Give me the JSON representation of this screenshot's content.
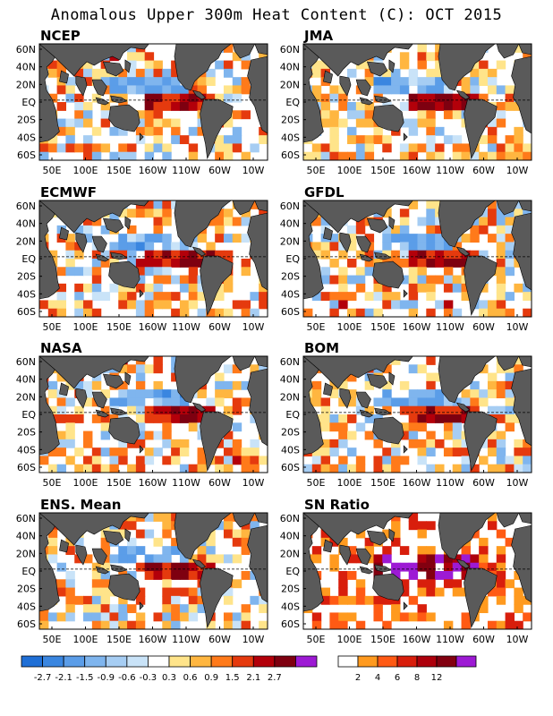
{
  "figure": {
    "title": "Anomalous Upper 300m Heat Content (C): OCT 2015"
  },
  "axes": {
    "lat_ticks": [
      "60N",
      "40N",
      "20N",
      "EQ",
      "20S",
      "40S",
      "60S"
    ],
    "lon_ticks": [
      "50E",
      "100E",
      "150E",
      "160W",
      "110W",
      "60W",
      "10W"
    ],
    "equator_line": "dashed"
  },
  "panels": [
    {
      "id": "ncep",
      "label": "NCEP",
      "kind": "anomaly"
    },
    {
      "id": "jma",
      "label": "JMA",
      "kind": "anomaly"
    },
    {
      "id": "ecmwf",
      "label": "ECMWF",
      "kind": "anomaly"
    },
    {
      "id": "gfdl",
      "label": "GFDL",
      "kind": "anomaly"
    },
    {
      "id": "nasa",
      "label": "NASA",
      "kind": "anomaly"
    },
    {
      "id": "bom",
      "label": "BOM",
      "kind": "anomaly"
    },
    {
      "id": "ens",
      "label": "ENS. Mean",
      "kind": "anomaly"
    },
    {
      "id": "sn",
      "label": "SN Ratio",
      "kind": "ratio"
    }
  ],
  "colorbar_anomaly": {
    "ticks": [
      "-2.7",
      "-2.1",
      "-1.5",
      "-0.9",
      "-0.6",
      "-0.3",
      "0.3",
      "0.6",
      "0.9",
      "1.5",
      "2.1",
      "2.7"
    ],
    "colors": [
      "#1f6fd6",
      "#3a86e0",
      "#5b9de8",
      "#7fb5ee",
      "#a6cdf3",
      "#c9e3f8",
      "#ffffff",
      "#ffe48a",
      "#ffb640",
      "#ff7a1a",
      "#e53a0e",
      "#b3000a",
      "#7e0010",
      "#9d1ad4"
    ]
  },
  "colorbar_ratio": {
    "ticks": [
      "2",
      "4",
      "6",
      "8",
      "12"
    ],
    "colors": [
      "#ffffff",
      "#ff9a1f",
      "#ff5a14",
      "#d81e0c",
      "#ad000c",
      "#820010",
      "#9d1ad4"
    ]
  },
  "colors": {
    "land": "#5a5a5a",
    "ocean_neutral": "#ffffff",
    "frame": "#000000"
  }
}
